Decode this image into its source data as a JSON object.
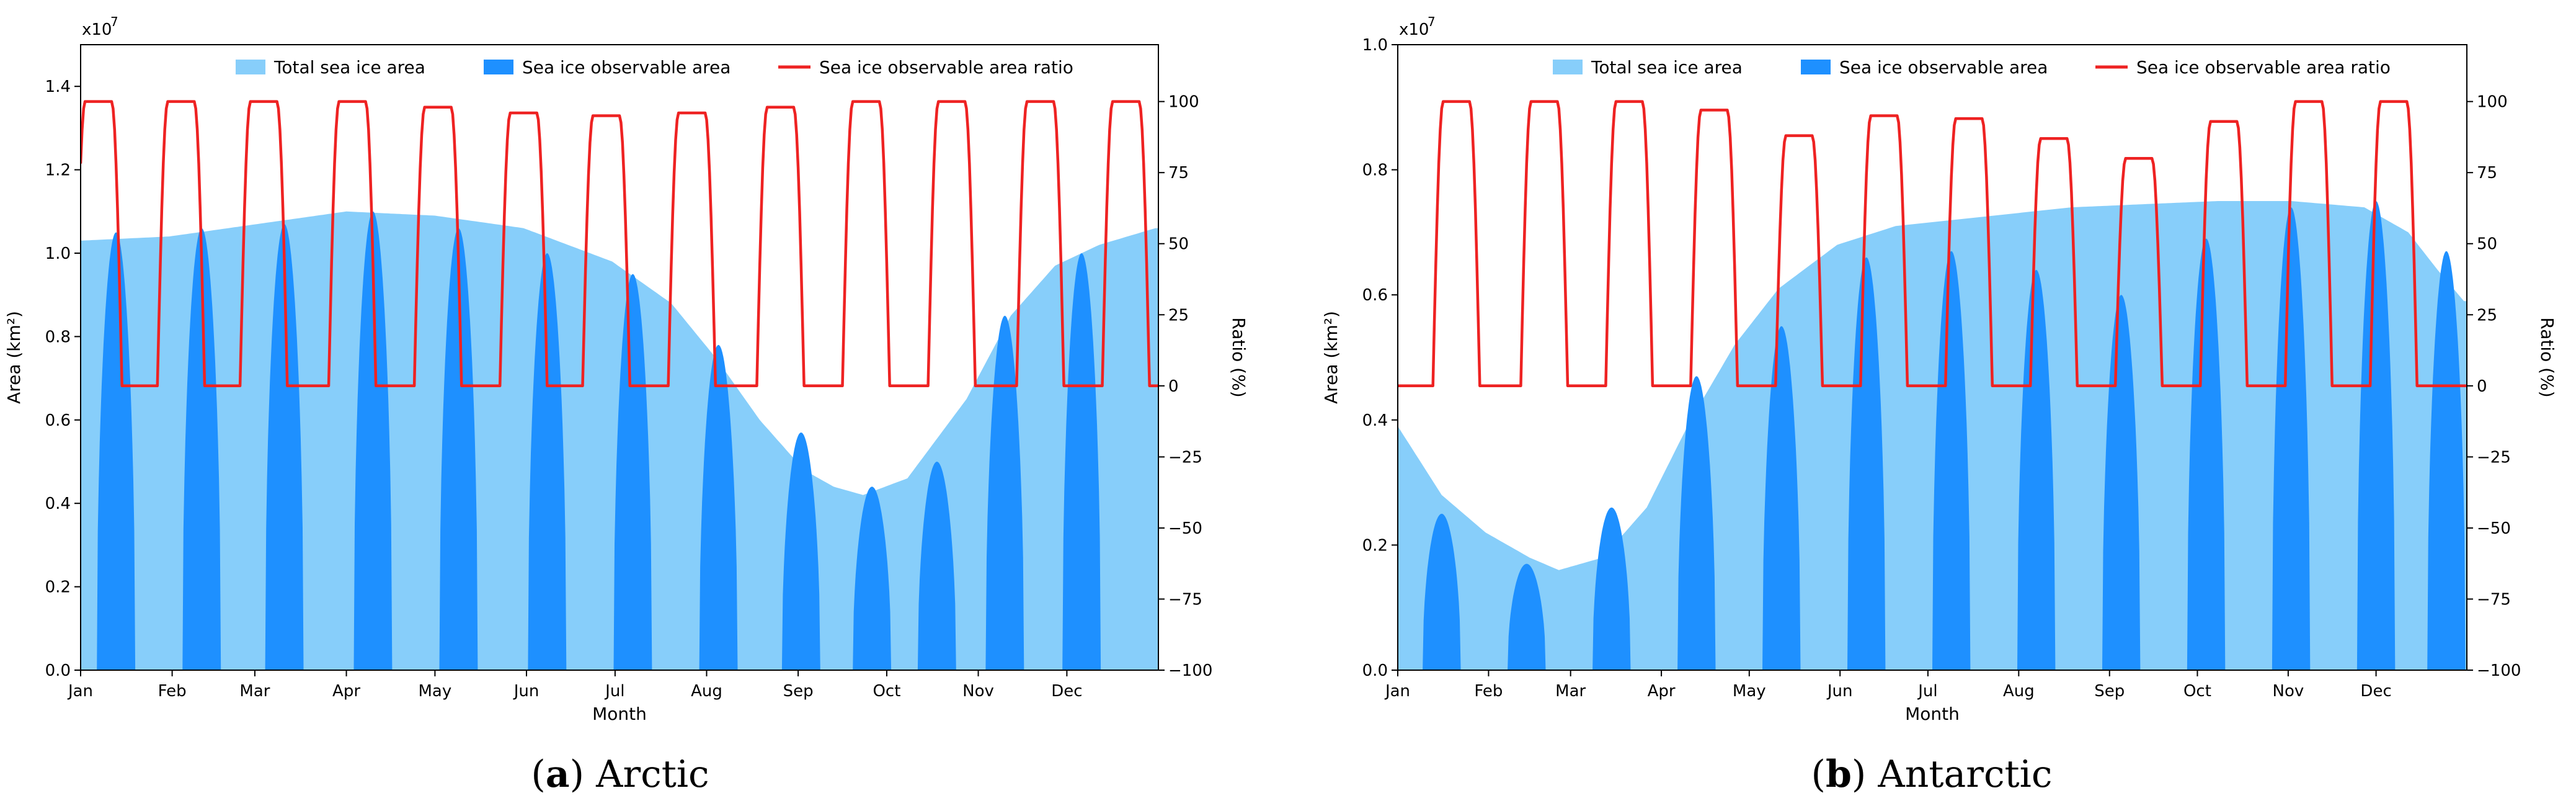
{
  "chart_data": [
    {
      "panel": "a",
      "type": "area",
      "caption_letter": "a",
      "caption_text": "Arctic",
      "xlabel": "Month",
      "ylabel": "Area (km²)",
      "y2label": "Ratio (%)",
      "y_scale_label": "x10",
      "y_scale_exp": "7",
      "ylim": [
        0,
        1.5
      ],
      "y2lim": [
        -100,
        120
      ],
      "yticks": [
        "0.0",
        "0.2",
        "0.4",
        "0.6",
        "0.8",
        "1.0",
        "1.2",
        "1.4"
      ],
      "y2ticks": [
        "−100",
        "−75",
        "−50",
        "−25",
        "0",
        "25",
        "50",
        "75",
        "100"
      ],
      "months": [
        "Jan",
        "Feb",
        "Mar",
        "Apr",
        "May",
        "Jun",
        "Jul",
        "Aug",
        "Sep",
        "Oct",
        "Nov",
        "Dec"
      ],
      "legend": {
        "total": "Total sea ice area",
        "observable": "Sea ice observable area",
        "ratio": "Sea ice observable area ratio",
        "placement": "top-center"
      },
      "colors": {
        "total": "#87cefa",
        "observable": "#1e90ff",
        "ratio": "#ee2222"
      },
      "total_area": {
        "day": [
          0,
          30,
          60,
          90,
          120,
          150,
          180,
          200,
          215,
          230,
          245,
          255,
          265,
          280,
          300,
          315,
          330,
          345,
          364
        ],
        "value": [
          1.03,
          1.04,
          1.07,
          1.1,
          1.09,
          1.06,
          0.98,
          0.88,
          0.75,
          0.6,
          0.48,
          0.44,
          0.42,
          0.46,
          0.65,
          0.85,
          0.97,
          1.02,
          1.06
        ]
      },
      "observable_peaks": [
        {
          "day": 12,
          "value": 1.05
        },
        {
          "day": 41,
          "value": 1.06
        },
        {
          "day": 69,
          "value": 1.07
        },
        {
          "day": 99,
          "value": 1.1
        },
        {
          "day": 128,
          "value": 1.06
        },
        {
          "day": 158,
          "value": 1.0
        },
        {
          "day": 187,
          "value": 0.95
        },
        {
          "day": 216,
          "value": 0.78
        },
        {
          "day": 244,
          "value": 0.57
        },
        {
          "day": 268,
          "value": 0.44
        },
        {
          "day": 290,
          "value": 0.5
        },
        {
          "day": 313,
          "value": 0.85
        },
        {
          "day": 339,
          "value": 1.0
        }
      ],
      "ratio_cycles": [
        {
          "day": 6,
          "peak": 100
        },
        {
          "day": 34,
          "peak": 100
        },
        {
          "day": 62,
          "peak": 100
        },
        {
          "day": 92,
          "peak": 100
        },
        {
          "day": 121,
          "peak": 98
        },
        {
          "day": 150,
          "peak": 96
        },
        {
          "day": 178,
          "peak": 95
        },
        {
          "day": 207,
          "peak": 96
        },
        {
          "day": 237,
          "peak": 98
        },
        {
          "day": 266,
          "peak": 100
        },
        {
          "day": 295,
          "peak": 100
        },
        {
          "day": 325,
          "peak": 100
        },
        {
          "day": 354,
          "peak": 100
        }
      ]
    },
    {
      "panel": "b",
      "type": "area",
      "caption_letter": "b",
      "caption_text": "Antarctic",
      "xlabel": "Month",
      "ylabel": "Area (km²)",
      "y2label": "Ratio (%)",
      "y_scale_label": "x10",
      "y_scale_exp": "7",
      "ylim": [
        0,
        1.0
      ],
      "y2lim": [
        -100,
        120
      ],
      "yticks": [
        "0.0",
        "0.2",
        "0.4",
        "0.6",
        "0.8",
        "1.0"
      ],
      "y2ticks": [
        "−100",
        "−75",
        "−50",
        "−25",
        "0",
        "25",
        "50",
        "75",
        "100"
      ],
      "months": [
        "Jan",
        "Feb",
        "Mar",
        "Apr",
        "May",
        "Jun",
        "Jul",
        "Aug",
        "Sep",
        "Oct",
        "Nov",
        "Dec"
      ],
      "legend": {
        "total": "Total sea ice area",
        "observable": "Sea ice observable area",
        "ratio": "Sea ice observable area ratio",
        "placement": "top-center"
      },
      "colors": {
        "total": "#87cefa",
        "observable": "#1e90ff",
        "ratio": "#ee2222"
      },
      "total_area": {
        "day": [
          0,
          15,
          30,
          45,
          55,
          70,
          85,
          100,
          115,
          130,
          150,
          170,
          190,
          210,
          230,
          255,
          280,
          305,
          330,
          345,
          355,
          364
        ],
        "value": [
          0.39,
          0.28,
          0.22,
          0.18,
          0.16,
          0.18,
          0.26,
          0.4,
          0.52,
          0.61,
          0.68,
          0.71,
          0.72,
          0.73,
          0.74,
          0.745,
          0.75,
          0.75,
          0.74,
          0.7,
          0.64,
          0.59
        ]
      },
      "observable_peaks": [
        {
          "day": 15,
          "value": 0.25
        },
        {
          "day": 44,
          "value": 0.17
        },
        {
          "day": 73,
          "value": 0.26
        },
        {
          "day": 102,
          "value": 0.47
        },
        {
          "day": 131,
          "value": 0.55
        },
        {
          "day": 160,
          "value": 0.66
        },
        {
          "day": 189,
          "value": 0.67
        },
        {
          "day": 218,
          "value": 0.64
        },
        {
          "day": 247,
          "value": 0.6
        },
        {
          "day": 276,
          "value": 0.69
        },
        {
          "day": 305,
          "value": 0.74
        },
        {
          "day": 334,
          "value": 0.75
        },
        {
          "day": 358,
          "value": 0.67
        }
      ],
      "ratio_cycles": [
        {
          "day": 20,
          "peak": 100
        },
        {
          "day": 50,
          "peak": 100
        },
        {
          "day": 79,
          "peak": 100
        },
        {
          "day": 108,
          "peak": 97
        },
        {
          "day": 137,
          "peak": 88
        },
        {
          "day": 166,
          "peak": 95
        },
        {
          "day": 195,
          "peak": 94
        },
        {
          "day": 224,
          "peak": 87
        },
        {
          "day": 253,
          "peak": 80
        },
        {
          "day": 282,
          "peak": 93
        },
        {
          "day": 311,
          "peak": 100
        },
        {
          "day": 340,
          "peak": 100
        }
      ]
    }
  ]
}
